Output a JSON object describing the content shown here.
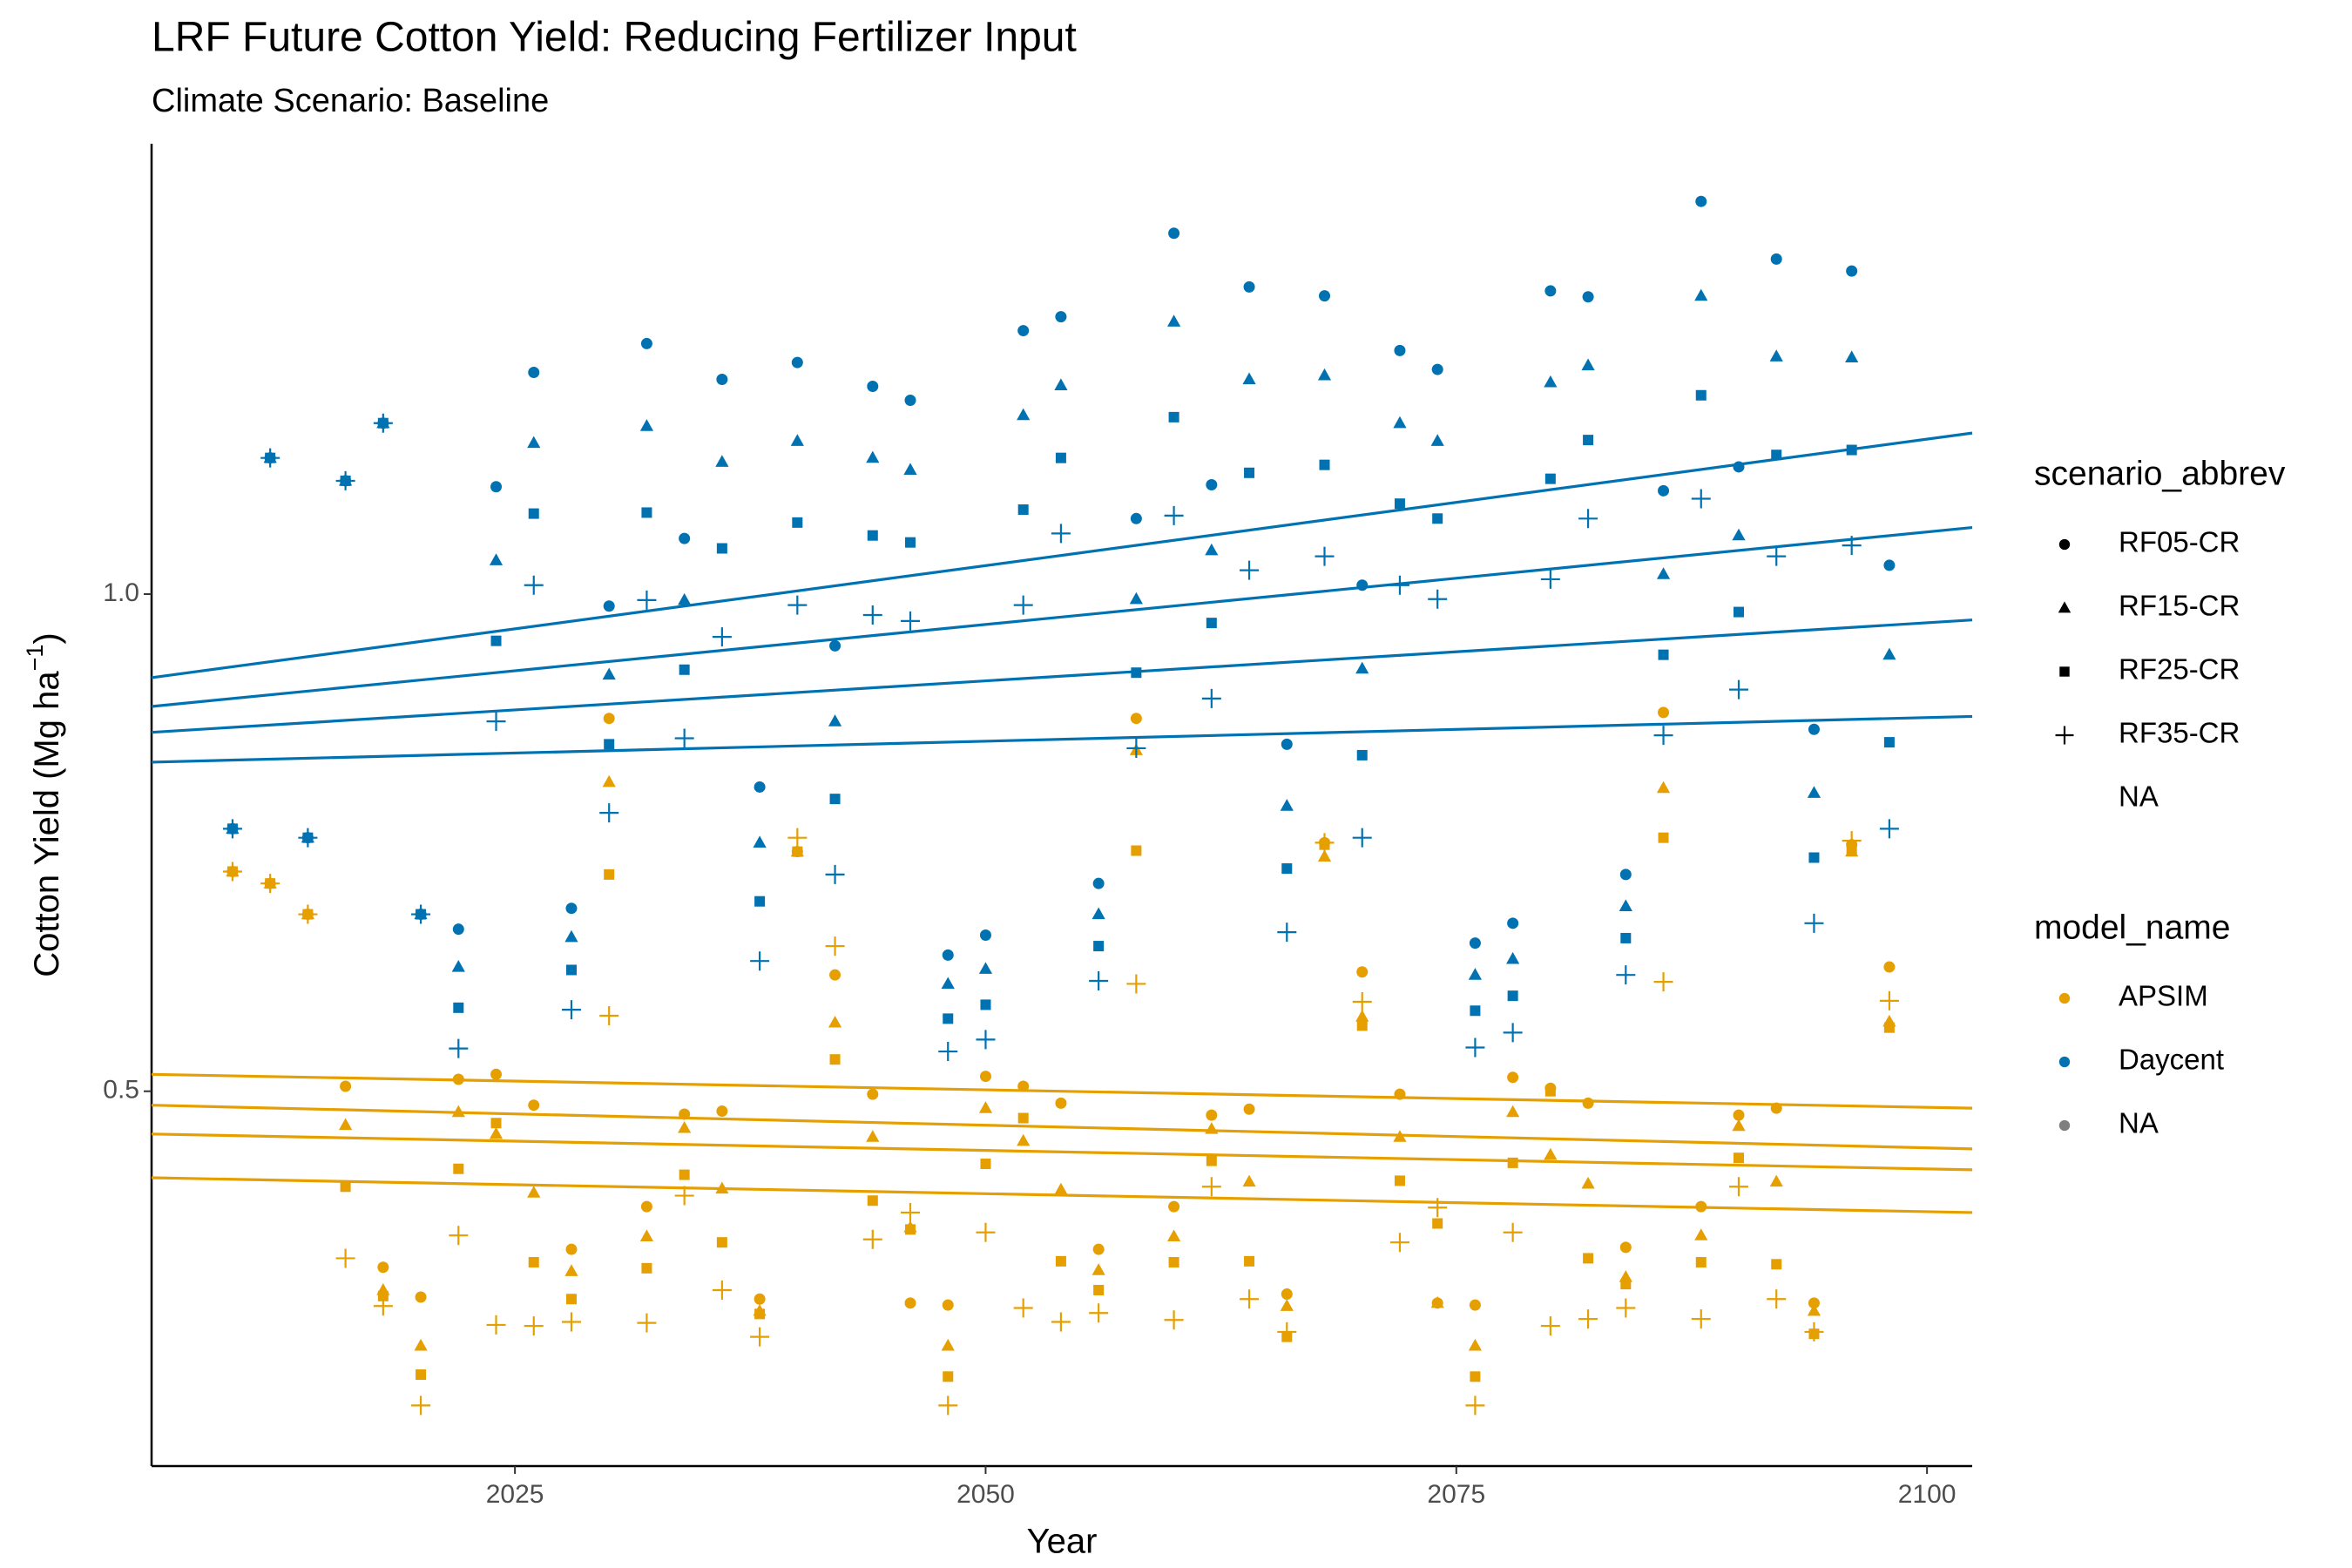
{
  "chart_data": {
    "type": "scatter",
    "title": "LRF Future Cotton Yield: Reducing Fertilizer Input",
    "subtitle": "Climate Scenario: Baseline",
    "xlabel": "Year",
    "ylabel": {
      "text": "Cotton Yield (Mg ha",
      "sup": "−1",
      "end": ")"
    },
    "xlim": [
      2005.7,
      2102.4
    ],
    "ylim": [
      0.123,
      1.453
    ],
    "xticks": [
      2025,
      2050,
      2075,
      2100
    ],
    "yticks": [
      0.5,
      {
        "value": 1,
        "label": "1.0"
      }
    ],
    "grid": false,
    "x": [
      2010,
      2012,
      2014,
      2016,
      2018,
      2020,
      2022,
      2024,
      2026,
      2028,
      2030,
      2032,
      2034,
      2036,
      2038,
      2040,
      2042,
      2044,
      2046,
      2048,
      2050,
      2052,
      2054,
      2056,
      2058,
      2060,
      2062,
      2064,
      2066,
      2068,
      2070,
      2072,
      2074,
      2076,
      2078,
      2080,
      2082,
      2084,
      2086,
      2088,
      2090,
      2092,
      2094,
      2096,
      2098
    ],
    "series": [
      {
        "color": "#E69F00",
        "shape": "circle",
        "values": [
          0.721,
          0.709,
          0.678,
          0.505,
          0.323,
          0.293,
          0.512,
          0.517,
          0.486,
          0.341,
          0.875,
          0.384,
          0.477,
          0.48,
          0.291,
          0.741,
          0.617,
          0.497,
          0.287,
          0.285,
          0.515,
          0.505,
          0.488,
          0.341,
          0.875,
          0.384,
          0.476,
          0.482,
          0.296,
          0.75,
          0.62,
          0.497,
          0.287,
          0.285,
          0.514,
          0.503,
          0.488,
          0.343,
          0.881,
          0.384,
          0.476,
          0.483,
          0.287,
          0.748,
          0.625
        ]
      },
      {
        "color": "#E69F00",
        "shape": "triangle",
        "values": [
          0.721,
          0.709,
          0.678,
          0.466,
          0.3,
          0.244,
          0.479,
          0.457,
          0.398,
          0.319,
          0.811,
          0.354,
          0.463,
          0.402,
          0.279,
          0.741,
          0.569,
          0.454,
          0.363,
          0.244,
          0.483,
          0.45,
          0.401,
          0.32,
          0.843,
          0.354,
          0.462,
          0.409,
          0.284,
          0.736,
          0.575,
          0.454,
          0.287,
          0.244,
          0.479,
          0.436,
          0.407,
          0.313,
          0.805,
          0.355,
          0.465,
          0.409,
          0.279,
          0.741,
          0.57
        ]
      },
      {
        "color": "#E69F00",
        "shape": "square",
        "values": [
          0.721,
          0.709,
          0.678,
          0.404,
          0.294,
          0.215,
          0.422,
          0.468,
          0.328,
          0.291,
          0.718,
          0.322,
          0.416,
          0.348,
          0.276,
          0.741,
          0.532,
          0.39,
          0.361,
          0.213,
          0.427,
          0.473,
          0.329,
          0.3,
          0.742,
          0.328,
          0.43,
          0.329,
          0.253,
          0.748,
          0.566,
          0.41,
          0.367,
          0.213,
          0.428,
          0.5,
          0.332,
          0.306,
          0.755,
          0.328,
          0.433,
          0.326,
          0.256,
          0.742,
          0.564
        ]
      },
      {
        "color": "#E69F00",
        "shape": "plus",
        "values": [
          0.721,
          0.709,
          0.678,
          0.332,
          0.284,
          0.184,
          0.355,
          0.265,
          0.264,
          0.268,
          0.576,
          0.267,
          0.395,
          0.3,
          0.253,
          0.755,
          0.646,
          0.351,
          0.378,
          0.184,
          0.358,
          0.282,
          0.268,
          0.277,
          0.608,
          0.27,
          0.404,
          0.291,
          0.258,
          0.75,
          0.59,
          0.348,
          0.383,
          0.184,
          0.358,
          0.264,
          0.271,
          0.282,
          0.61,
          0.271,
          0.404,
          0.291,
          0.258,
          0.752,
          0.591
        ]
      },
      {
        "color": "#0072B2",
        "shape": "circle",
        "values": [
          0.764,
          1.137,
          0.755,
          1.114,
          1.172,
          0.678,
          0.663,
          1.108,
          1.223,
          0.684,
          0.988,
          1.252,
          1.056,
          1.216,
          0.806,
          1.233,
          0.948,
          1.209,
          1.195,
          0.637,
          0.657,
          1.265,
          1.279,
          0.709,
          1.076,
          1.363,
          1.11,
          1.309,
          0.849,
          1.3,
          1.009,
          1.245,
          1.226,
          0.649,
          0.669,
          1.305,
          1.299,
          0.718,
          1.104,
          1.395,
          1.128,
          1.337,
          0.864,
          1.325,
          1.029
        ]
      },
      {
        "color": "#0072B2",
        "shape": "triangle",
        "values": [
          0.764,
          1.137,
          0.755,
          1.114,
          1.172,
          0.678,
          0.625,
          1.034,
          1.152,
          0.655,
          0.919,
          1.169,
          0.994,
          1.133,
          0.75,
          1.154,
          0.872,
          1.137,
          1.125,
          0.608,
          0.623,
          1.18,
          1.21,
          0.678,
          0.995,
          1.274,
          1.044,
          1.216,
          0.787,
          1.22,
          0.925,
          1.172,
          1.154,
          0.617,
          0.633,
          1.213,
          1.23,
          0.686,
          1.02,
          1.3,
          1.059,
          1.239,
          0.8,
          1.238,
          0.939
        ]
      },
      {
        "color": "#0072B2",
        "shape": "square",
        "values": [
          0.764,
          1.137,
          0.755,
          1.114,
          1.172,
          0.678,
          0.584,
          0.953,
          1.081,
          0.622,
          0.849,
          1.082,
          0.924,
          1.046,
          0.691,
          1.072,
          0.794,
          1.059,
          1.052,
          0.573,
          0.587,
          1.085,
          1.137,
          0.646,
          0.921,
          1.178,
          0.971,
          1.122,
          0.724,
          1.13,
          0.838,
          1.091,
          1.076,
          0.581,
          0.596,
          1.116,
          1.155,
          0.654,
          0.939,
          1.2,
          0.982,
          1.14,
          0.735,
          1.145,
          0.851
        ]
      },
      {
        "color": "#0072B2",
        "shape": "plus",
        "values": [
          0.764,
          1.137,
          0.755,
          1.114,
          1.172,
          0.678,
          0.543,
          0.872,
          1.009,
          0.582,
          0.78,
          0.994,
          0.855,
          0.957,
          0.631,
          0.989,
          0.718,
          0.979,
          0.973,
          0.54,
          0.552,
          0.989,
          1.061,
          0.611,
          0.845,
          1.079,
          0.895,
          1.024,
          0.66,
          1.038,
          0.755,
          1.009,
          0.995,
          0.544,
          0.559,
          1.015,
          1.076,
          0.617,
          0.858,
          1.096,
          0.904,
          1.038,
          0.669,
          1.049,
          0.764
        ]
      }
    ],
    "trend_lines": [
      {
        "color": "#0072B2",
        "x": [
          2005.7,
          2102.4
        ],
        "values": [
          0.916,
          1.162
        ]
      },
      {
        "color": "#0072B2",
        "x": [
          2005.7,
          2102.4
        ],
        "values": [
          0.887,
          1.067
        ]
      },
      {
        "color": "#0072B2",
        "x": [
          2005.7,
          2102.4
        ],
        "values": [
          0.861,
          0.974
        ]
      },
      {
        "color": "#0072B2",
        "x": [
          2005.7,
          2102.4
        ],
        "values": [
          0.831,
          0.877
        ]
      },
      {
        "color": "#E69F00",
        "x": [
          2005.7,
          2102.4
        ],
        "values": [
          0.517,
          0.483
        ]
      },
      {
        "color": "#E69F00",
        "x": [
          2005.7,
          2102.4
        ],
        "values": [
          0.486,
          0.442
        ]
      },
      {
        "color": "#E69F00",
        "x": [
          2005.7,
          2102.4
        ],
        "values": [
          0.457,
          0.421
        ]
      },
      {
        "color": "#E69F00",
        "x": [
          2005.7,
          2102.4
        ],
        "values": [
          0.413,
          0.378
        ]
      }
    ],
    "legends": [
      {
        "title": "scenario_abbrev",
        "entries": [
          {
            "label": "RF05-CR",
            "shape": "circle",
            "color": "#000000"
          },
          {
            "label": "RF15-CR",
            "shape": "triangle",
            "color": "#000000"
          },
          {
            "label": "RF25-CR",
            "shape": "square",
            "color": "#000000"
          },
          {
            "label": "RF35-CR",
            "shape": "plus",
            "color": "#000000"
          },
          {
            "label": "NA"
          }
        ]
      },
      {
        "title": "model_name",
        "entries": [
          {
            "label": "APSIM",
            "shape": "circle",
            "color": "#E69F00"
          },
          {
            "label": "Daycent",
            "shape": "circle",
            "color": "#0072B2"
          },
          {
            "label": "NA",
            "shape": "circle",
            "color": "#7F7F7F"
          }
        ]
      }
    ]
  }
}
